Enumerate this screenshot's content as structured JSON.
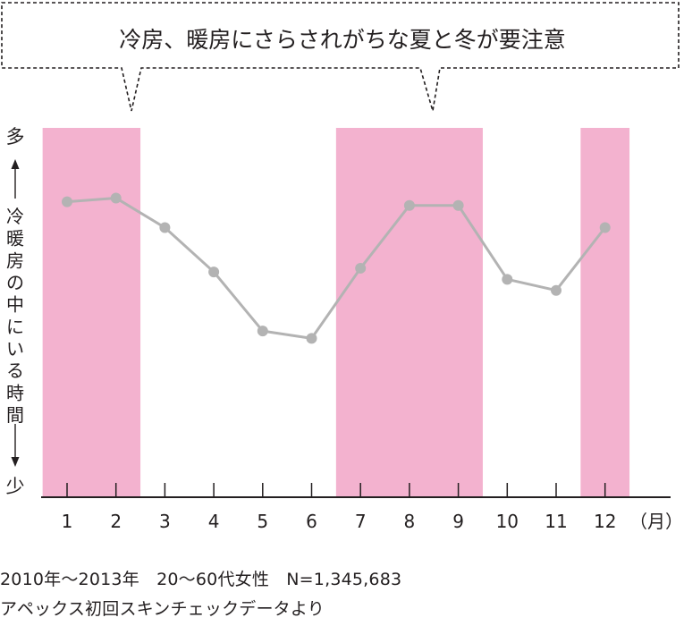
{
  "chart_data": {
    "type": "line",
    "title": "冷房、暖房にさらされがちな夏と冬が要注意",
    "ylabel": "冷暖房の中にいる時間",
    "y_top_label": "多",
    "y_bottom_label": "少",
    "x_unit": "（月）",
    "categories": [
      "1",
      "2",
      "3",
      "4",
      "5",
      "6",
      "7",
      "8",
      "9",
      "10",
      "11",
      "12"
    ],
    "series": [
      {
        "values": [
          0.8,
          0.81,
          0.73,
          0.61,
          0.45,
          0.43,
          0.62,
          0.79,
          0.79,
          0.59,
          0.56,
          0.73
        ]
      }
    ],
    "ylim": [
      0,
      1
    ],
    "highlighted_periods": [
      [
        1,
        2
      ],
      [
        7,
        9
      ],
      [
        12,
        12
      ]
    ],
    "grid": false,
    "colors": {
      "line": "#b3b3b3",
      "marker": "#b3b3b3",
      "highlight": "#f3b2cf",
      "axis": "#231f20"
    }
  },
  "notes": [
    "2010年～2013年　20～60代女性　N=1,345,683",
    "アペックス初回スキンチェックデータより"
  ]
}
